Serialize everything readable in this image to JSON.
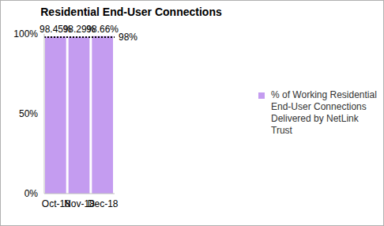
{
  "chart_data": {
    "type": "bar",
    "title": "Residential End-User Connections",
    "categories": [
      "Oct-18",
      "Nov-18",
      "Dec-18"
    ],
    "series": [
      {
        "name": "% of Working Residential End-User Connections Delivered by NetLink Trust",
        "color": "#c49cf0",
        "values": [
          98.45,
          98.29,
          98.66
        ],
        "value_labels": [
          "98.45%",
          "98.29%",
          "98.66%"
        ]
      }
    ],
    "ylim": [
      0,
      100
    ],
    "yticks": [
      {
        "value": 0,
        "label": "0%"
      },
      {
        "value": 50,
        "label": "50%"
      },
      {
        "value": 100,
        "label": "100%"
      }
    ],
    "annotations": [
      {
        "y": 98,
        "label": "98%",
        "line_style": "dotted"
      }
    ],
    "data_labels": true,
    "grid": false,
    "legend": "right"
  }
}
